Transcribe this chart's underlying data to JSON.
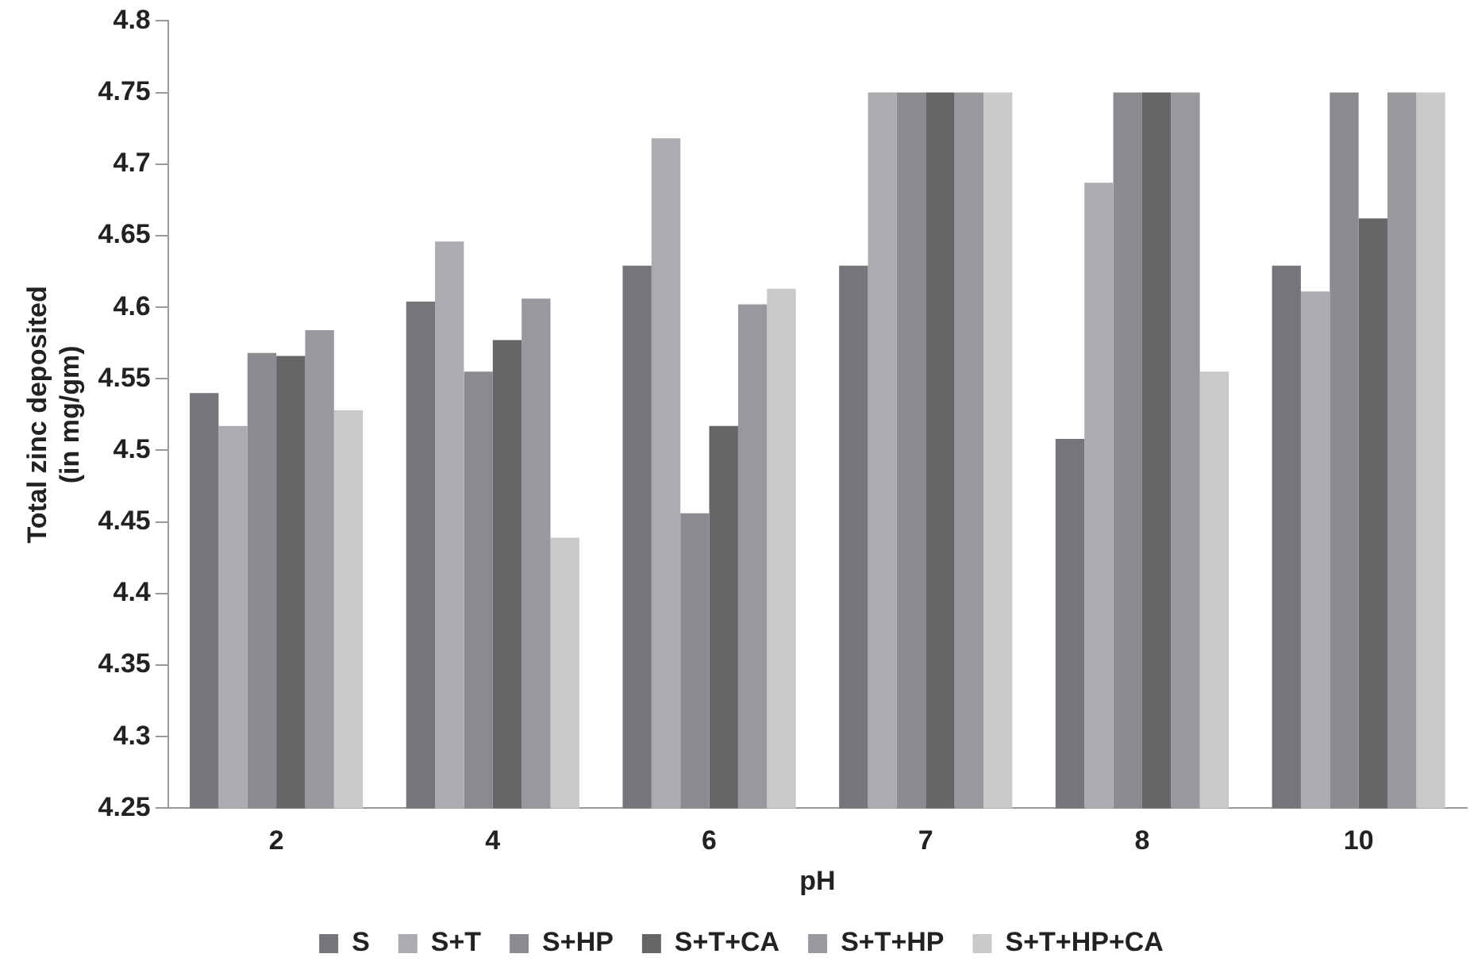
{
  "chart_data": {
    "type": "bar",
    "xlabel": "pH",
    "ylabel": "Total zinc deposited\n(in mg/gm)",
    "categories": [
      "2",
      "4",
      "6",
      "7",
      "8",
      "10"
    ],
    "series": [
      {
        "name": "S",
        "color": "#75767a",
        "values": [
          4.54,
          4.604,
          4.629,
          4.629,
          4.508,
          4.629
        ]
      },
      {
        "name": "S+T",
        "color": "#abacb0",
        "values": [
          4.517,
          4.646,
          4.718,
          4.75,
          4.687,
          4.611
        ]
      },
      {
        "name": "S+HP",
        "color": "#8a8b8f",
        "values": [
          4.568,
          4.555,
          4.456,
          4.75,
          4.75,
          4.75
        ]
      },
      {
        "name": "S+T+CA",
        "color": "#656567",
        "values": [
          4.566,
          4.577,
          4.517,
          4.75,
          4.75,
          4.662
        ]
      },
      {
        "name": "S+T+HP",
        "color": "#98999d",
        "values": [
          4.584,
          4.606,
          4.602,
          4.75,
          4.75,
          4.75
        ]
      },
      {
        "name": "S+T+HP+CA",
        "color": "#c8c9cb",
        "values": [
          4.528,
          4.439,
          4.613,
          4.75,
          4.555,
          4.75
        ]
      }
    ],
    "ylim": [
      4.25,
      4.8
    ],
    "yticks": [
      4.25,
      4.3,
      4.35,
      4.4,
      4.45,
      4.5,
      4.55,
      4.6,
      4.65,
      4.7,
      4.75,
      4.8
    ],
    "grid": false,
    "legend": "bottom"
  }
}
